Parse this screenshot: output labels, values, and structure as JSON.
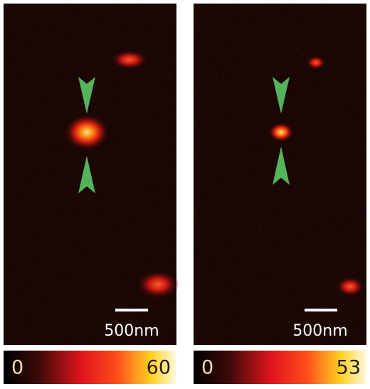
{
  "panels": [
    {
      "scale_bar": "500nm",
      "colorbar": {
        "min": 0,
        "max": 60
      }
    },
    {
      "scale_bar": "500nm",
      "colorbar": {
        "min": 0,
        "max": 53
      }
    }
  ]
}
